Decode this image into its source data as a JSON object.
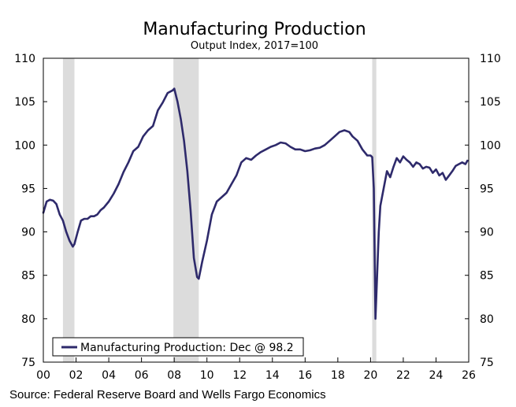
{
  "chart_data": {
    "type": "line",
    "title": "Manufacturing Production",
    "subtitle": "Output Index, 2017=100",
    "source": "Source: Federal Reserve Board and Wells Fargo Economics",
    "xlabel": "",
    "ylabel": "",
    "xlim": [
      2000,
      2026
    ],
    "ylim": [
      75,
      110
    ],
    "x_ticks": [
      2000,
      2002,
      2004,
      2006,
      2008,
      2010,
      2012,
      2014,
      2016,
      2018,
      2020,
      2022,
      2024,
      2026
    ],
    "x_tick_labels": [
      "00",
      "02",
      "04",
      "06",
      "08",
      "10",
      "12",
      "14",
      "16",
      "18",
      "20",
      "22",
      "24",
      "26"
    ],
    "y_ticks": [
      75,
      80,
      85,
      90,
      95,
      100,
      105,
      110
    ],
    "y_tick_labels_left": [
      "75",
      "80",
      "85",
      "90",
      "95",
      "100",
      "105",
      "110"
    ],
    "y_tick_labels_right": [
      "75",
      "80",
      "85",
      "90",
      "95",
      "100",
      "105",
      "110"
    ],
    "grid": false,
    "legend_position": "bottom-left",
    "recessions": [
      {
        "start": 2001.2,
        "end": 2001.9
      },
      {
        "start": 2007.95,
        "end": 2009.5
      },
      {
        "start": 2020.1,
        "end": 2020.35
      }
    ],
    "series": [
      {
        "name": "Manufacturing Production: Dec @ 98.2",
        "color": "#2e2a6b",
        "x": [
          2000.0,
          2000.2,
          2000.4,
          2000.6,
          2000.8,
          2001.0,
          2001.2,
          2001.4,
          2001.6,
          2001.8,
          2001.9,
          2002.1,
          2002.3,
          2002.5,
          2002.7,
          2002.9,
          2003.1,
          2003.3,
          2003.5,
          2003.7,
          2004.0,
          2004.3,
          2004.6,
          2004.9,
          2005.2,
          2005.5,
          2005.8,
          2006.1,
          2006.4,
          2006.7,
          2007.0,
          2007.3,
          2007.6,
          2007.9,
          2008.0,
          2008.2,
          2008.4,
          2008.6,
          2008.8,
          2009.0,
          2009.2,
          2009.4,
          2009.5,
          2009.7,
          2010.0,
          2010.3,
          2010.6,
          2010.9,
          2011.2,
          2011.5,
          2011.8,
          2012.1,
          2012.4,
          2012.7,
          2013.0,
          2013.3,
          2013.6,
          2013.9,
          2014.2,
          2014.5,
          2014.8,
          2015.1,
          2015.4,
          2015.7,
          2016.0,
          2016.3,
          2016.6,
          2016.9,
          2017.2,
          2017.5,
          2017.8,
          2018.1,
          2018.4,
          2018.7,
          2018.9,
          2019.2,
          2019.5,
          2019.8,
          2020.0,
          2020.1,
          2020.2,
          2020.3,
          2020.4,
          2020.5,
          2020.6,
          2020.8,
          2021.0,
          2021.2,
          2021.4,
          2021.6,
          2021.8,
          2022.0,
          2022.2,
          2022.4,
          2022.6,
          2022.8,
          2023.0,
          2023.2,
          2023.4,
          2023.6,
          2023.8,
          2024.0,
          2024.2,
          2024.4,
          2024.6,
          2024.8,
          2025.0,
          2025.2,
          2025.4,
          2025.6,
          2025.8,
          2025.92
        ],
        "values": [
          92.2,
          93.5,
          93.7,
          93.6,
          93.2,
          92.0,
          91.3,
          90.0,
          89.0,
          88.3,
          88.6,
          90.0,
          91.3,
          91.5,
          91.5,
          91.8,
          91.8,
          92.0,
          92.5,
          92.8,
          93.5,
          94.4,
          95.5,
          96.9,
          98.0,
          99.3,
          99.8,
          101.0,
          101.7,
          102.2,
          104.0,
          104.9,
          106.0,
          106.3,
          106.5,
          105.0,
          103.0,
          100.5,
          97.0,
          92.5,
          87.0,
          84.8,
          84.6,
          86.5,
          89.0,
          92.0,
          93.5,
          94.0,
          94.5,
          95.5,
          96.5,
          98.0,
          98.5,
          98.3,
          98.8,
          99.2,
          99.5,
          99.8,
          100.0,
          100.3,
          100.2,
          99.8,
          99.5,
          99.5,
          99.3,
          99.4,
          99.6,
          99.7,
          100.0,
          100.5,
          101.0,
          101.5,
          101.7,
          101.5,
          101.0,
          100.5,
          99.5,
          98.8,
          98.8,
          98.6,
          95.0,
          80.0,
          85.0,
          90.0,
          93.0,
          95.0,
          97.0,
          96.3,
          97.5,
          98.5,
          98.0,
          98.7,
          98.3,
          98.0,
          97.5,
          98.0,
          97.8,
          97.3,
          97.5,
          97.4,
          96.8,
          97.2,
          96.5,
          96.8,
          96.0,
          96.5,
          97.0,
          97.6,
          97.8,
          98.0,
          97.8,
          98.2
        ]
      }
    ]
  }
}
